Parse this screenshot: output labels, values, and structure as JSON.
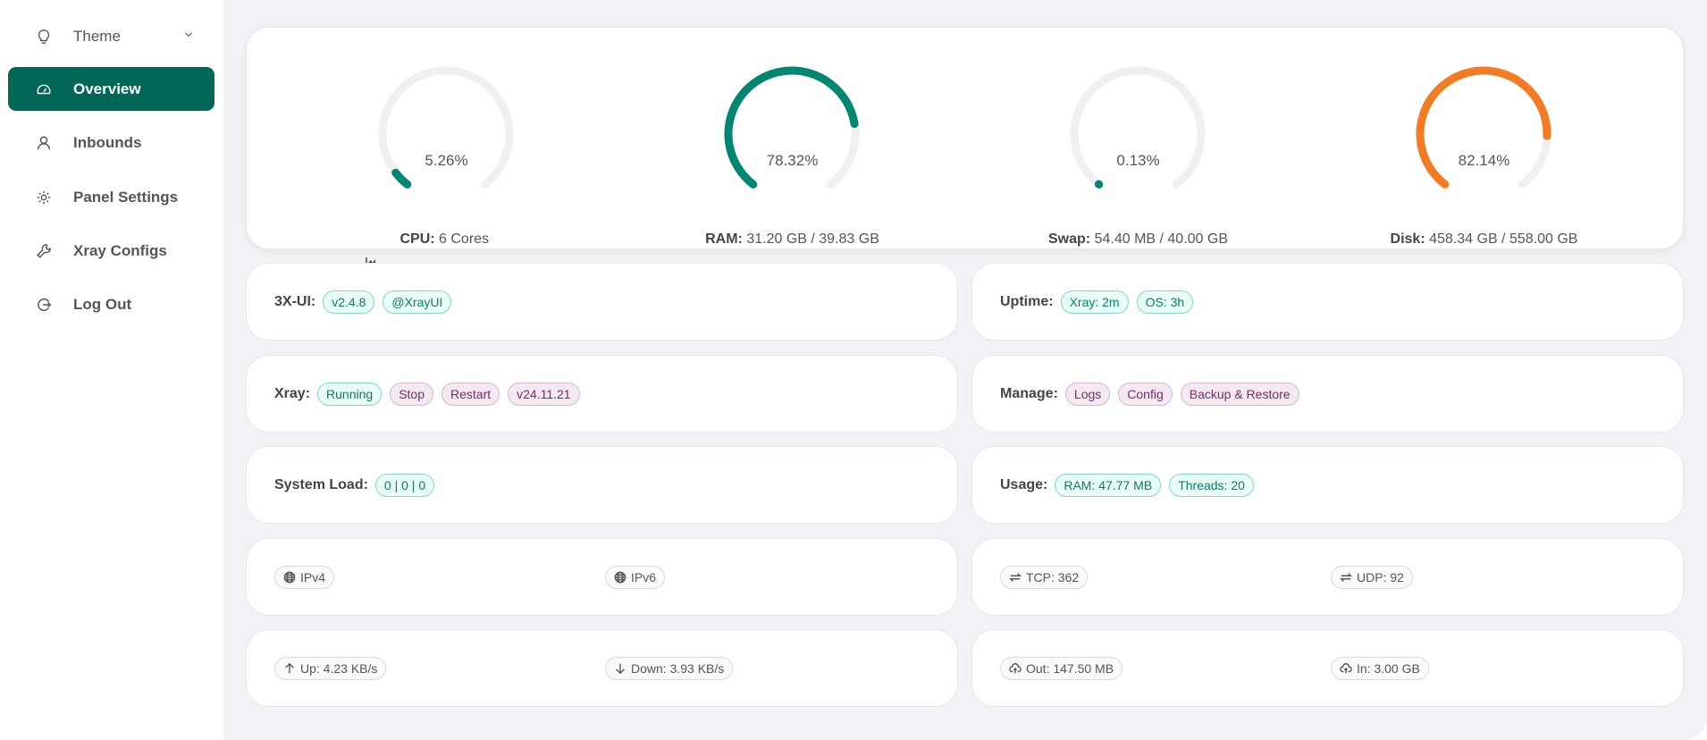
{
  "sidebar": {
    "items": [
      {
        "label": "Theme",
        "icon": "bulb-icon"
      },
      {
        "label": "Overview",
        "icon": "dashboard-icon",
        "active": true
      },
      {
        "label": "Inbounds",
        "icon": "user-icon"
      },
      {
        "label": "Panel Settings",
        "icon": "gear-icon"
      },
      {
        "label": "Xray Configs",
        "icon": "wrench-icon"
      },
      {
        "label": "Log Out",
        "icon": "logout-icon"
      }
    ]
  },
  "colors": {
    "accent": "#006655",
    "gauge_ok": "#008771",
    "gauge_warn": "#f37b24",
    "track": "#f0f0f0"
  },
  "gauges": [
    {
      "percent": 5.26,
      "pct_text": "5.26%",
      "label": "CPU:",
      "value": "6 Cores",
      "color": "#008771"
    },
    {
      "percent": 78.32,
      "pct_text": "78.32%",
      "label": "RAM:",
      "value": "31.20 GB / 39.83 GB",
      "color": "#008771"
    },
    {
      "percent": 0.13,
      "pct_text": "0.13%",
      "label": "Swap:",
      "value": "54.40 MB / 40.00 GB",
      "color": "#008771"
    },
    {
      "percent": 82.14,
      "pct_text": "82.14%",
      "label": "Disk:",
      "value": "458.34 GB / 558.00 GB",
      "color": "#f37b24"
    }
  ],
  "panel": {
    "label": "3X-UI:",
    "version": "v2.4.8",
    "channel": "@XrayUI"
  },
  "uptime": {
    "label": "Uptime:",
    "xray": "Xray: 2m",
    "os": "OS: 3h"
  },
  "xray": {
    "label": "Xray:",
    "status": "Running",
    "stop": "Stop",
    "restart": "Restart",
    "version": "v24.11.21"
  },
  "manage": {
    "label": "Manage:",
    "logs": "Logs",
    "config": "Config",
    "backup": "Backup & Restore"
  },
  "load": {
    "label": "System Load:",
    "value": "0 | 0 | 0"
  },
  "usage": {
    "label": "Usage:",
    "ram": "RAM: 47.77 MB",
    "threads": "Threads: 20"
  },
  "ip": {
    "v4": "IPv4",
    "v6": "IPv6"
  },
  "conn": {
    "tcp": "TCP: 362",
    "udp": "UDP: 92"
  },
  "speed": {
    "up": "Up: 4.23 KB/s",
    "down": "Down: 3.93 KB/s"
  },
  "traffic": {
    "out": "Out: 147.50 MB",
    "in": "In: 3.00 GB"
  }
}
